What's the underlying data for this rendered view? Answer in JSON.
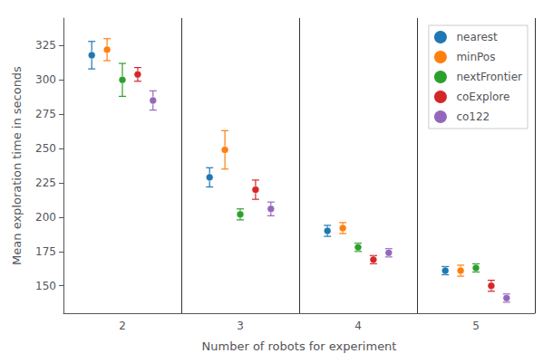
{
  "chart_data": {
    "type": "scatter",
    "xlabel": "Number of robots for experiment",
    "ylabel": "Mean exploration time in seconds",
    "categories": [
      "2",
      "3",
      "4",
      "5"
    ],
    "series": [
      {
        "name": "nearest",
        "color": "#1f77b4",
        "values": [
          318,
          229,
          190,
          161
        ],
        "error_low": [
          10,
          7,
          4,
          3
        ],
        "error_high": [
          10,
          7,
          4,
          3
        ]
      },
      {
        "name": "minPos",
        "color": "#ff7f0e",
        "values": [
          322,
          249,
          192,
          161
        ],
        "error_low": [
          8,
          14,
          4,
          4
        ],
        "error_high": [
          8,
          14,
          4,
          4
        ]
      },
      {
        "name": "nextFrontier",
        "color": "#2ca02c",
        "values": [
          300,
          202,
          178,
          163
        ],
        "error_low": [
          12,
          4,
          3,
          3
        ],
        "error_high": [
          12,
          4,
          3,
          3
        ]
      },
      {
        "name": "coExplore",
        "color": "#d62728",
        "values": [
          304,
          220,
          169,
          150
        ],
        "error_low": [
          5,
          7,
          3,
          4
        ],
        "error_high": [
          5,
          7,
          3,
          4
        ]
      },
      {
        "name": "co122",
        "color": "#9467bd",
        "values": [
          285,
          206,
          174,
          141
        ],
        "error_low": [
          7,
          5,
          3,
          3
        ],
        "error_high": [
          7,
          5,
          3,
          3
        ]
      }
    ],
    "ylim": [
      130,
      345
    ],
    "yticks": [
      150,
      175,
      200,
      225,
      250,
      275,
      300,
      325
    ],
    "grid": false,
    "legend": "upper right"
  }
}
